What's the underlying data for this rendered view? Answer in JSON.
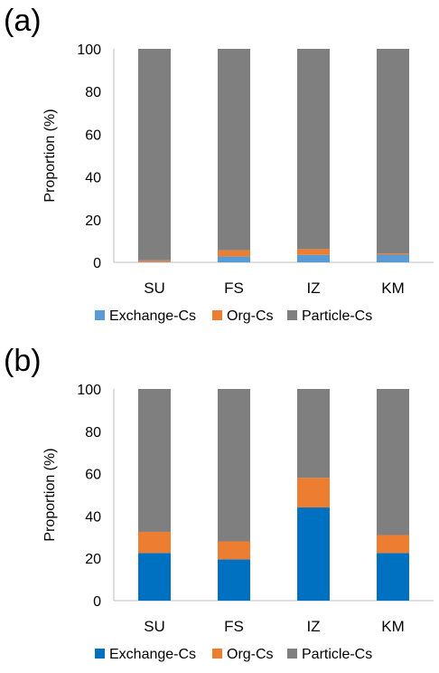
{
  "chart_data": [
    {
      "type": "bar",
      "stacked": true,
      "panel_label": "(a)",
      "ylabel": "Proportion (%)",
      "ylim": [
        0,
        100
      ],
      "yticks": [
        "0",
        "20",
        "40",
        "60",
        "80",
        "100"
      ],
      "categories": [
        "SU",
        "FS",
        "IZ",
        "KM"
      ],
      "series": [
        {
          "name": "Exchange-Cs",
          "color": "#5b9bd5",
          "values": [
            0.3,
            2.8,
            3.5,
            3.6
          ]
        },
        {
          "name": "Org-Cs",
          "color": "#ed7d31",
          "values": [
            0.7,
            2.8,
            2.7,
            0.6
          ]
        },
        {
          "name": "Particle-Cs",
          "color": "#7f7f7f",
          "values": [
            99.0,
            94.4,
            93.8,
            95.8
          ]
        }
      ],
      "legend": "bottom",
      "grid": false
    },
    {
      "type": "bar",
      "stacked": true,
      "panel_label": "(b)",
      "ylabel": "Proportion (%)",
      "ylim": [
        0,
        100
      ],
      "yticks": [
        "0",
        "20",
        "40",
        "60",
        "80",
        "100"
      ],
      "categories": [
        "SU",
        "FS",
        "IZ",
        "KM"
      ],
      "series": [
        {
          "name": "Exchange-Cs",
          "color": "#0070c0",
          "values": [
            22.5,
            19.5,
            44.0,
            22.5
          ]
        },
        {
          "name": "Org-Cs",
          "color": "#ed7d31",
          "values": [
            10.0,
            8.5,
            14.0,
            8.5
          ]
        },
        {
          "name": "Particle-Cs",
          "color": "#7f7f7f",
          "values": [
            67.5,
            72.0,
            42.0,
            69.0
          ]
        }
      ],
      "legend": "bottom",
      "grid": false
    }
  ]
}
